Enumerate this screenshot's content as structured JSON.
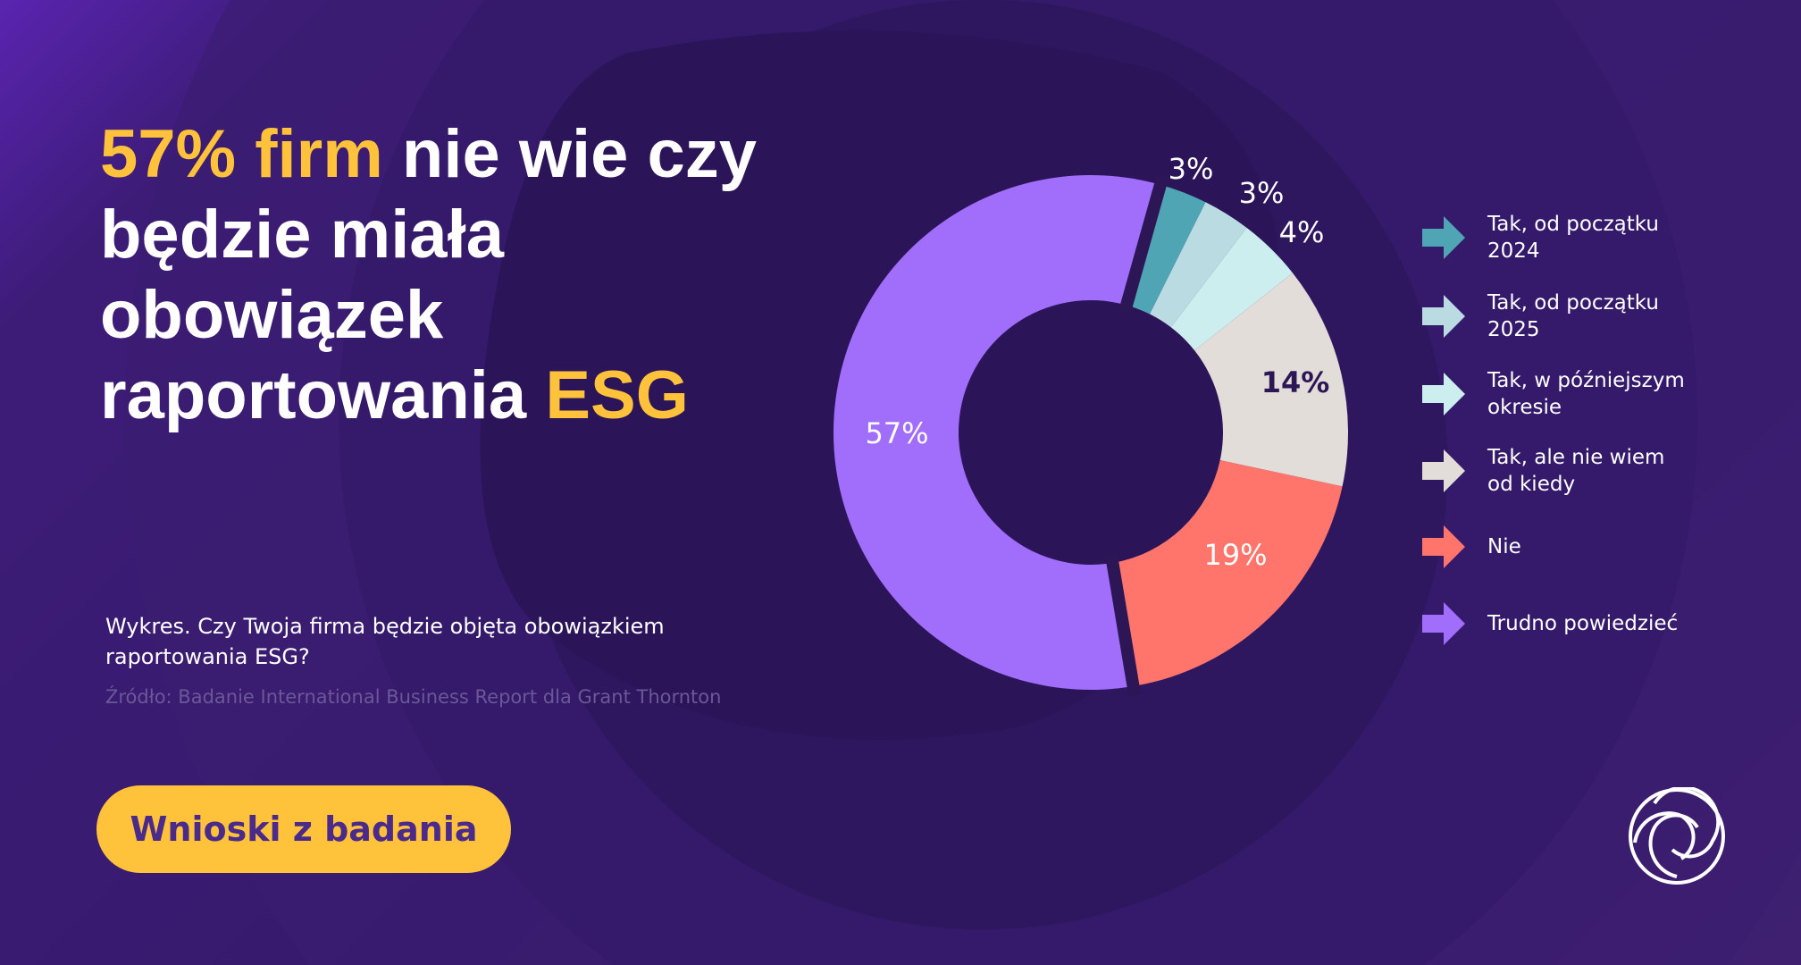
{
  "headline": {
    "highlight1": "57% firm",
    "mid": " nie wie czy będzie miała obowiązek raportowania ",
    "highlight2": "ESG"
  },
  "caption": "Wykres. Czy Twoja firma będzie objęta obowiązkiem raportowania ESG?",
  "source": "Źródło: Badanie International Business Report dla Grant Thornton",
  "cta_label": "Wnioski z badania",
  "colors": {
    "accent": "#ffc23a",
    "background": "#361a6c"
  },
  "logo_icon": "grant-thornton-swirl-logo",
  "chart_data": {
    "type": "donut",
    "categories": [
      "Tak, od początku 2024",
      "Tak, od początku 2025",
      "Tak, w późniejszym okresie",
      "Tak, ale nie wiem od kiedy",
      "Nie",
      "Trudno powiedzieć"
    ],
    "values": [
      3,
      3,
      4,
      14,
      19,
      57
    ],
    "labels": [
      "3%",
      "3%",
      "4%",
      "14%",
      "19%",
      "57%"
    ],
    "colors": [
      "#4fa5b4",
      "#b9dbe1",
      "#cdeeee",
      "#e2ddd8",
      "#ff756b",
      "#a16dfb"
    ],
    "label_colors": [
      "#ffffff",
      "#ffffff",
      "#ffffff",
      "#2c1656",
      "#ffffff",
      "#ffffff"
    ],
    "legend": {
      "placement": "right",
      "items": [
        "Tak, od początku\n2024",
        "Tak, od początku\n2025",
        "Tak, w późniejszym\nokresie",
        "Tak, ale nie wiem\nod kiedy",
        "Nie",
        "Trudno powiedzieć"
      ]
    }
  }
}
